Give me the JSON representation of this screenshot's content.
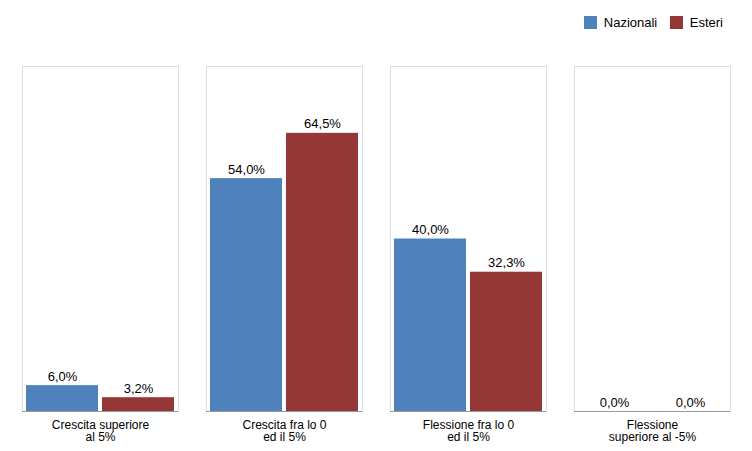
{
  "chart_data": {
    "type": "bar",
    "categories": [
      "Crescita superiore\nal 5%",
      "Crescita fra lo 0\ned il 5%",
      "Flessione fra lo 0\ned il 5%",
      "Flessione\nsuperiore al -5%"
    ],
    "series": [
      {
        "name": "Nazionali",
        "color": "#4F81BD",
        "values": [
          6.0,
          54.0,
          40.0,
          0.0
        ],
        "value_labels": [
          "6,0%",
          "54,0%",
          "40,0%",
          "0,0%"
        ]
      },
      {
        "name": "Esteri",
        "color": "#953735",
        "values": [
          3.2,
          64.5,
          32.3,
          0.0
        ],
        "value_labels": [
          "3,2%",
          "64,5%",
          "32,3%",
          "0,0%"
        ]
      }
    ],
    "ylim": [
      0,
      80
    ],
    "data_labels": true,
    "legend": "upper right",
    "tick_labels": "x",
    "grid": false
  }
}
